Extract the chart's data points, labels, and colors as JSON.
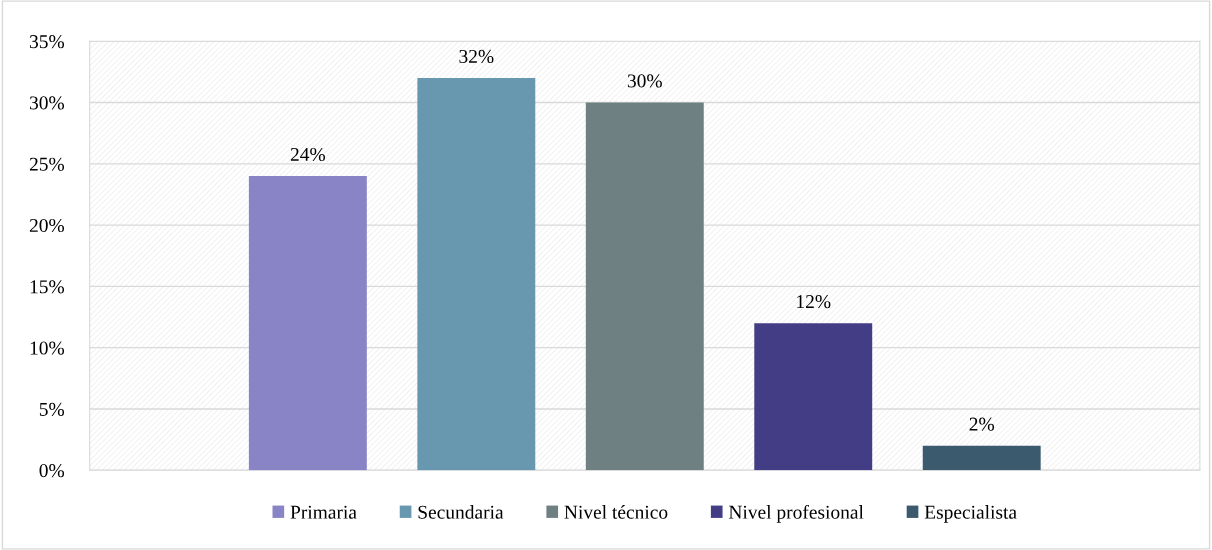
{
  "chart_data": {
    "type": "bar",
    "categories": [
      null
    ],
    "series": [
      {
        "name": "Primaria",
        "color": "#8884c6",
        "values": [
          24
        ],
        "value_labels": [
          "24%"
        ]
      },
      {
        "name": "Secundaria",
        "color": "#6898b0",
        "values": [
          32
        ],
        "value_labels": [
          "32%"
        ]
      },
      {
        "name": "Nivel técnico",
        "color": "#6f8083",
        "values": [
          30
        ],
        "value_labels": [
          "30%"
        ]
      },
      {
        "name": "Nivel profesional",
        "color": "#433d86",
        "values": [
          12
        ],
        "value_labels": [
          "12%"
        ]
      },
      {
        "name": "Especialista",
        "color": "#3c5a6e",
        "values": [
          2
        ],
        "value_labels": [
          "2%"
        ]
      }
    ],
    "ylim": [
      0,
      35
    ],
    "yticks": [
      {
        "value": 0,
        "label": "0%"
      },
      {
        "value": 5,
        "label": "5%"
      },
      {
        "value": 10,
        "label": "10%"
      },
      {
        "value": 15,
        "label": "15%"
      },
      {
        "value": 20,
        "label": "20%"
      },
      {
        "value": 25,
        "label": "25%"
      },
      {
        "value": 30,
        "label": "30%"
      },
      {
        "value": 35,
        "label": "35%"
      }
    ],
    "grid": "y",
    "legend": "bottom"
  }
}
